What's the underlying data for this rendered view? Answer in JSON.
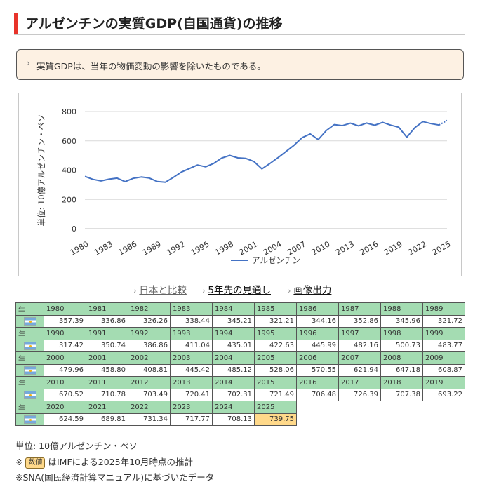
{
  "page": {
    "title": "アルゼンチンの実質GDP(自国通貨)の推移",
    "note": "実質GDPは、当年の物価変動の影響を除いたものである。"
  },
  "chart_data": {
    "type": "line",
    "title": "",
    "ylabel": "単位: 10億アルゼンチン・ペソ",
    "xlabel": "",
    "ylim": [
      0,
      800
    ],
    "yticks": [
      0,
      200,
      400,
      600,
      800
    ],
    "xticks": [
      1980,
      1983,
      1986,
      1989,
      1992,
      1995,
      1998,
      2001,
      2004,
      2007,
      2010,
      2013,
      2016,
      2019,
      2022,
      2025
    ],
    "legend": "bottom",
    "color": "#4472c4",
    "estimate_from_year": 2025,
    "x": [
      1980,
      1981,
      1982,
      1983,
      1984,
      1985,
      1986,
      1987,
      1988,
      1989,
      1990,
      1991,
      1992,
      1993,
      1994,
      1995,
      1996,
      1997,
      1998,
      1999,
      2000,
      2001,
      2002,
      2003,
      2004,
      2005,
      2006,
      2007,
      2008,
      2009,
      2010,
      2011,
      2012,
      2013,
      2014,
      2015,
      2016,
      2017,
      2018,
      2019,
      2020,
      2021,
      2022,
      2023,
      2024,
      2025
    ],
    "series": [
      {
        "name": "アルゼンチン",
        "values": [
          357.39,
          336.86,
          326.26,
          338.44,
          345.21,
          321.21,
          344.16,
          352.86,
          345.96,
          321.72,
          317.42,
          350.74,
          386.86,
          411.04,
          435.01,
          422.63,
          445.99,
          482.16,
          500.73,
          483.77,
          479.96,
          458.8,
          408.81,
          445.42,
          485.12,
          528.06,
          570.55,
          621.94,
          647.18,
          608.87,
          670.52,
          710.78,
          703.49,
          720.41,
          702.31,
          721.49,
          706.48,
          726.39,
          707.38,
          693.22,
          624.59,
          689.81,
          731.34,
          717.77,
          708.13,
          739.75
        ]
      }
    ]
  },
  "links": {
    "compare_japan": "日本と比較",
    "forecast": "5年先の見通し",
    "export_image": "画像出力"
  },
  "table": {
    "year_label": "年",
    "flag_name": "argentina-flag",
    "rows": [
      {
        "years": [
          "1980",
          "1981",
          "1982",
          "1983",
          "1984",
          "1985",
          "1986",
          "1987",
          "1988",
          "1989"
        ],
        "values": [
          "357.39",
          "336.86",
          "326.26",
          "338.44",
          "345.21",
          "321.21",
          "344.16",
          "352.86",
          "345.96",
          "321.72"
        ]
      },
      {
        "years": [
          "1990",
          "1991",
          "1992",
          "1993",
          "1994",
          "1995",
          "1996",
          "1997",
          "1998",
          "1999"
        ],
        "values": [
          "317.42",
          "350.74",
          "386.86",
          "411.04",
          "435.01",
          "422.63",
          "445.99",
          "482.16",
          "500.73",
          "483.77"
        ]
      },
      {
        "years": [
          "2000",
          "2001",
          "2002",
          "2003",
          "2004",
          "2005",
          "2006",
          "2007",
          "2008",
          "2009"
        ],
        "values": [
          "479.96",
          "458.80",
          "408.81",
          "445.42",
          "485.12",
          "528.06",
          "570.55",
          "621.94",
          "647.18",
          "608.87"
        ]
      },
      {
        "years": [
          "2010",
          "2011",
          "2012",
          "2013",
          "2014",
          "2015",
          "2016",
          "2017",
          "2018",
          "2019"
        ],
        "values": [
          "670.52",
          "710.78",
          "703.49",
          "720.41",
          "702.31",
          "721.49",
          "706.48",
          "726.39",
          "707.38",
          "693.22"
        ]
      },
      {
        "years": [
          "2020",
          "2021",
          "2022",
          "2023",
          "2024",
          "2025"
        ],
        "values": [
          "624.59",
          "689.81",
          "731.34",
          "717.77",
          "708.13",
          "739.75"
        ]
      }
    ],
    "estimate_year": "2025"
  },
  "footer": {
    "unit": "単位: 10億アルゼンチン・ペソ",
    "estimate_prefix": "※",
    "estimate_badge": "数値",
    "estimate_text": "はIMFによる2025年10月時点の推計",
    "sna": "※SNA(国民経済計算マニュアル)に基づいたデータ"
  },
  "colors": {
    "accent": "#e8332a",
    "line": "#4472c4",
    "header": "#a4dcb2",
    "estimate": "#ffd98a",
    "note_bg": "#fdf1e3"
  }
}
